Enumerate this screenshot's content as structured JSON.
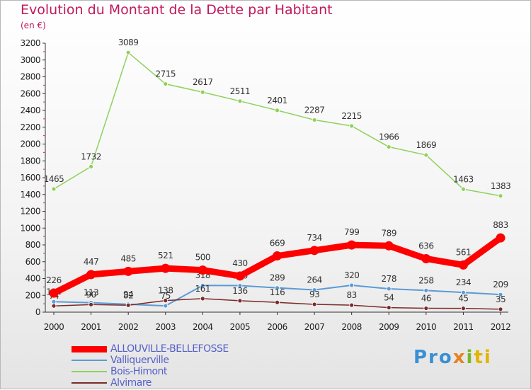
{
  "chart_data": {
    "type": "line",
    "title": "Evolution du Montant de la Dette par Habitant",
    "subtitle": "(en €)",
    "x": [
      "2000",
      "2001",
      "2002",
      "2003",
      "2004",
      "2005",
      "2006",
      "2007",
      "2008",
      "2009",
      "2010",
      "2011",
      "2012"
    ],
    "ylim": [
      0,
      3200
    ],
    "yticks": [
      0,
      200,
      400,
      600,
      800,
      1000,
      1200,
      1400,
      1600,
      1800,
      2000,
      2200,
      2400,
      2600,
      2800,
      3000,
      3200
    ],
    "grid": false,
    "legend_placement": "bottom-left",
    "series": [
      {
        "name": "ALLOUVILLE-BELLEFOSSE",
        "color": "#ff0000",
        "width": 9,
        "values": [
          226,
          447,
          485,
          521,
          500,
          430,
          669,
          734,
          799,
          789,
          636,
          561,
          883
        ]
      },
      {
        "name": "Valliquerville",
        "color": "#5b9bd5",
        "width": 2,
        "values": [
          124,
          113,
          94,
          75,
          318,
          316,
          289,
          264,
          320,
          278,
          258,
          234,
          209
        ]
      },
      {
        "name": "Bois-Himont",
        "color": "#8fd15a",
        "width": 1.5,
        "values": [
          1465,
          1732,
          3089,
          2715,
          2617,
          2511,
          2401,
          2287,
          2215,
          1966,
          1869,
          1463,
          1383
        ]
      },
      {
        "name": "Alvimare",
        "color": "#7a2a2a",
        "width": 1.5,
        "values": [
          74,
          90,
          82,
          138,
          161,
          136,
          116,
          93,
          83,
          54,
          46,
          45,
          35
        ]
      }
    ]
  },
  "logo": {
    "text": "Proxiti"
  }
}
